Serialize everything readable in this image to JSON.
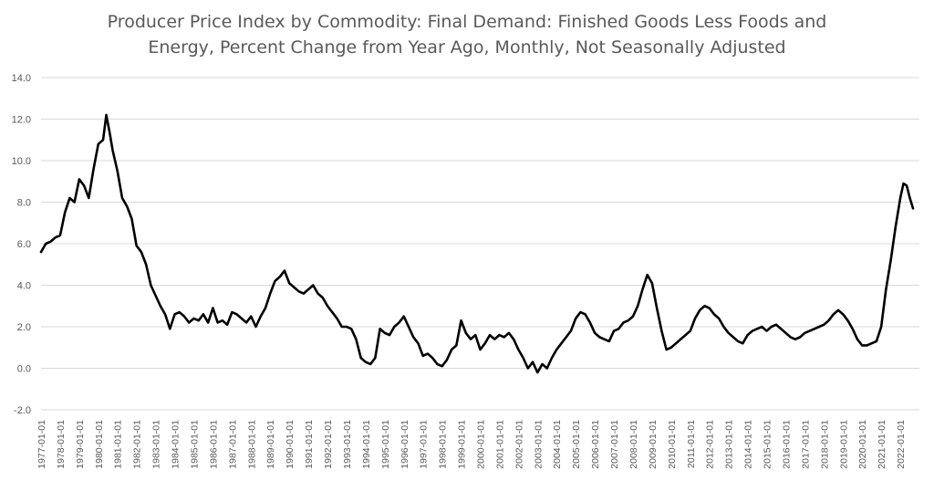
{
  "chart_data": {
    "type": "line",
    "title_lines": [
      "Producer Price Index by Commodity: Final Demand: Finished Goods Less Foods and",
      "Energy, Percent Change from Year Ago, Monthly, Not Seasonally Adjusted"
    ],
    "xlabel": "",
    "ylabel": "",
    "ylim": [
      -2.0,
      14.0
    ],
    "y_ticks": [
      "14.0",
      "12.0",
      "10.0",
      "8.0",
      "6.0",
      "4.0",
      "2.0",
      "0.0",
      "-2.0"
    ],
    "x_ticks": [
      "1977-01-01",
      "1978-01-01",
      "1979-01-01",
      "1980-01-01",
      "1981-01-01",
      "1982-01-01",
      "1983-01-01",
      "1984-01-01",
      "1985-01-01",
      "1986-01-01",
      "1987-01-01",
      "1988-01-01",
      "1989-01-01",
      "1990-01-01",
      "1991-01-01",
      "1992-01-01",
      "1993-01-01",
      "1994-01-01",
      "1995-01-01",
      "1996-01-01",
      "1997-01-01",
      "1998-01-01",
      "1999-01-01",
      "2000-01-01",
      "2001-01-01",
      "2002-01-01",
      "2003-01-01",
      "2004-01-01",
      "2005-01-01",
      "2006-01-01",
      "2007-01-01",
      "2008-01-01",
      "2009-01-01",
      "2010-01-01",
      "2011-01-01",
      "2012-01-01",
      "2013-01-01",
      "2014-01-01",
      "2015-01-01",
      "2016-01-01",
      "2017-01-01",
      "2018-01-01",
      "2019-01-01",
      "2020-01-01",
      "2021-01-01",
      "2022-01-01"
    ],
    "grid": true,
    "legend": "none",
    "line_color": "#000000",
    "series": [
      {
        "points": [
          [
            "1977-01",
            5.6
          ],
          [
            "1977-04",
            6.0
          ],
          [
            "1977-07",
            6.1
          ],
          [
            "1977-10",
            6.3
          ],
          [
            "1978-01",
            6.4
          ],
          [
            "1978-04",
            7.5
          ],
          [
            "1978-07",
            8.2
          ],
          [
            "1978-10",
            8.0
          ],
          [
            "1979-01",
            9.1
          ],
          [
            "1979-04",
            8.8
          ],
          [
            "1979-07",
            8.2
          ],
          [
            "1979-10",
            9.6
          ],
          [
            "1980-01",
            10.8
          ],
          [
            "1980-04",
            11.0
          ],
          [
            "1980-06",
            12.2
          ],
          [
            "1980-08",
            11.4
          ],
          [
            "1980-10",
            10.5
          ],
          [
            "1981-01",
            9.5
          ],
          [
            "1981-04",
            8.2
          ],
          [
            "1981-07",
            7.8
          ],
          [
            "1981-10",
            7.2
          ],
          [
            "1982-01",
            5.9
          ],
          [
            "1982-04",
            5.6
          ],
          [
            "1982-07",
            5.0
          ],
          [
            "1982-10",
            4.0
          ],
          [
            "1983-01",
            3.5
          ],
          [
            "1983-04",
            3.0
          ],
          [
            "1983-07",
            2.6
          ],
          [
            "1983-10",
            1.9
          ],
          [
            "1984-01",
            2.6
          ],
          [
            "1984-04",
            2.7
          ],
          [
            "1984-07",
            2.5
          ],
          [
            "1984-10",
            2.2
          ],
          [
            "1985-01",
            2.4
          ],
          [
            "1985-04",
            2.3
          ],
          [
            "1985-07",
            2.6
          ],
          [
            "1985-10",
            2.2
          ],
          [
            "1986-01",
            2.9
          ],
          [
            "1986-04",
            2.2
          ],
          [
            "1986-07",
            2.3
          ],
          [
            "1986-10",
            2.1
          ],
          [
            "1987-01",
            2.7
          ],
          [
            "1987-04",
            2.6
          ],
          [
            "1987-07",
            2.4
          ],
          [
            "1987-10",
            2.2
          ],
          [
            "1988-01",
            2.5
          ],
          [
            "1988-04",
            2.0
          ],
          [
            "1988-07",
            2.5
          ],
          [
            "1988-10",
            2.9
          ],
          [
            "1989-01",
            3.6
          ],
          [
            "1989-04",
            4.2
          ],
          [
            "1989-07",
            4.4
          ],
          [
            "1989-10",
            4.7
          ],
          [
            "1990-01",
            4.1
          ],
          [
            "1990-04",
            3.9
          ],
          [
            "1990-07",
            3.7
          ],
          [
            "1990-10",
            3.6
          ],
          [
            "1991-01",
            3.8
          ],
          [
            "1991-04",
            4.0
          ],
          [
            "1991-07",
            3.6
          ],
          [
            "1991-10",
            3.4
          ],
          [
            "1992-01",
            3.0
          ],
          [
            "1992-04",
            2.7
          ],
          [
            "1992-07",
            2.4
          ],
          [
            "1992-10",
            2.0
          ],
          [
            "1993-01",
            2.0
          ],
          [
            "1993-04",
            1.9
          ],
          [
            "1993-07",
            1.4
          ],
          [
            "1993-10",
            0.5
          ],
          [
            "1994-01",
            0.3
          ],
          [
            "1994-04",
            0.2
          ],
          [
            "1994-07",
            0.5
          ],
          [
            "1994-10",
            1.9
          ],
          [
            "1995-01",
            1.7
          ],
          [
            "1995-04",
            1.6
          ],
          [
            "1995-07",
            2.0
          ],
          [
            "1995-10",
            2.2
          ],
          [
            "1996-01",
            2.5
          ],
          [
            "1996-04",
            2.0
          ],
          [
            "1996-07",
            1.5
          ],
          [
            "1996-10",
            1.2
          ],
          [
            "1997-01",
            0.6
          ],
          [
            "1997-04",
            0.7
          ],
          [
            "1997-07",
            0.5
          ],
          [
            "1997-10",
            0.2
          ],
          [
            "1998-01",
            0.1
          ],
          [
            "1998-04",
            0.4
          ],
          [
            "1998-07",
            0.9
          ],
          [
            "1998-10",
            1.1
          ],
          [
            "1999-01",
            2.3
          ],
          [
            "1999-04",
            1.7
          ],
          [
            "1999-07",
            1.4
          ],
          [
            "1999-10",
            1.6
          ],
          [
            "2000-01",
            0.9
          ],
          [
            "2000-04",
            1.2
          ],
          [
            "2000-07",
            1.6
          ],
          [
            "2000-10",
            1.4
          ],
          [
            "2001-01",
            1.6
          ],
          [
            "2001-04",
            1.5
          ],
          [
            "2001-07",
            1.7
          ],
          [
            "2001-10",
            1.4
          ],
          [
            "2002-01",
            0.9
          ],
          [
            "2002-04",
            0.5
          ],
          [
            "2002-07",
            0.0
          ],
          [
            "2002-10",
            0.3
          ],
          [
            "2003-01",
            -0.2
          ],
          [
            "2003-04",
            0.2
          ],
          [
            "2003-07",
            0.0
          ],
          [
            "2003-10",
            0.5
          ],
          [
            "2004-01",
            0.9
          ],
          [
            "2004-04",
            1.2
          ],
          [
            "2004-07",
            1.5
          ],
          [
            "2004-10",
            1.8
          ],
          [
            "2005-01",
            2.4
          ],
          [
            "2005-04",
            2.7
          ],
          [
            "2005-07",
            2.6
          ],
          [
            "2005-10",
            2.2
          ],
          [
            "2006-01",
            1.7
          ],
          [
            "2006-04",
            1.5
          ],
          [
            "2006-07",
            1.4
          ],
          [
            "2006-10",
            1.3
          ],
          [
            "2007-01",
            1.8
          ],
          [
            "2007-04",
            1.9
          ],
          [
            "2007-07",
            2.2
          ],
          [
            "2007-10",
            2.3
          ],
          [
            "2008-01",
            2.5
          ],
          [
            "2008-04",
            3.0
          ],
          [
            "2008-07",
            3.8
          ],
          [
            "2008-10",
            4.5
          ],
          [
            "2009-01",
            4.1
          ],
          [
            "2009-04",
            2.9
          ],
          [
            "2009-07",
            1.8
          ],
          [
            "2009-10",
            0.9
          ],
          [
            "2010-01",
            1.0
          ],
          [
            "2010-04",
            1.2
          ],
          [
            "2010-07",
            1.4
          ],
          [
            "2010-10",
            1.6
          ],
          [
            "2011-01",
            1.8
          ],
          [
            "2011-04",
            2.4
          ],
          [
            "2011-07",
            2.8
          ],
          [
            "2011-10",
            3.0
          ],
          [
            "2012-01",
            2.9
          ],
          [
            "2012-04",
            2.6
          ],
          [
            "2012-07",
            2.4
          ],
          [
            "2012-10",
            2.0
          ],
          [
            "2013-01",
            1.7
          ],
          [
            "2013-04",
            1.5
          ],
          [
            "2013-07",
            1.3
          ],
          [
            "2013-10",
            1.2
          ],
          [
            "2014-01",
            1.6
          ],
          [
            "2014-04",
            1.8
          ],
          [
            "2014-07",
            1.9
          ],
          [
            "2014-10",
            2.0
          ],
          [
            "2015-01",
            1.8
          ],
          [
            "2015-04",
            2.0
          ],
          [
            "2015-07",
            2.1
          ],
          [
            "2015-10",
            1.9
          ],
          [
            "2016-01",
            1.7
          ],
          [
            "2016-04",
            1.5
          ],
          [
            "2016-07",
            1.4
          ],
          [
            "2016-10",
            1.5
          ],
          [
            "2017-01",
            1.7
          ],
          [
            "2017-04",
            1.8
          ],
          [
            "2017-07",
            1.9
          ],
          [
            "2017-10",
            2.0
          ],
          [
            "2018-01",
            2.1
          ],
          [
            "2018-04",
            2.3
          ],
          [
            "2018-07",
            2.6
          ],
          [
            "2018-10",
            2.8
          ],
          [
            "2019-01",
            2.6
          ],
          [
            "2019-04",
            2.3
          ],
          [
            "2019-07",
            1.9
          ],
          [
            "2019-10",
            1.4
          ],
          [
            "2020-01",
            1.1
          ],
          [
            "2020-04",
            1.1
          ],
          [
            "2020-07",
            1.2
          ],
          [
            "2020-10",
            1.3
          ],
          [
            "2021-01",
            2.0
          ],
          [
            "2021-04",
            3.8
          ],
          [
            "2021-07",
            5.2
          ],
          [
            "2021-10",
            6.8
          ],
          [
            "2022-01",
            8.2
          ],
          [
            "2022-03",
            8.9
          ],
          [
            "2022-05",
            8.8
          ],
          [
            "2022-07",
            8.2
          ],
          [
            "2022-09",
            7.7
          ]
        ]
      }
    ]
  }
}
